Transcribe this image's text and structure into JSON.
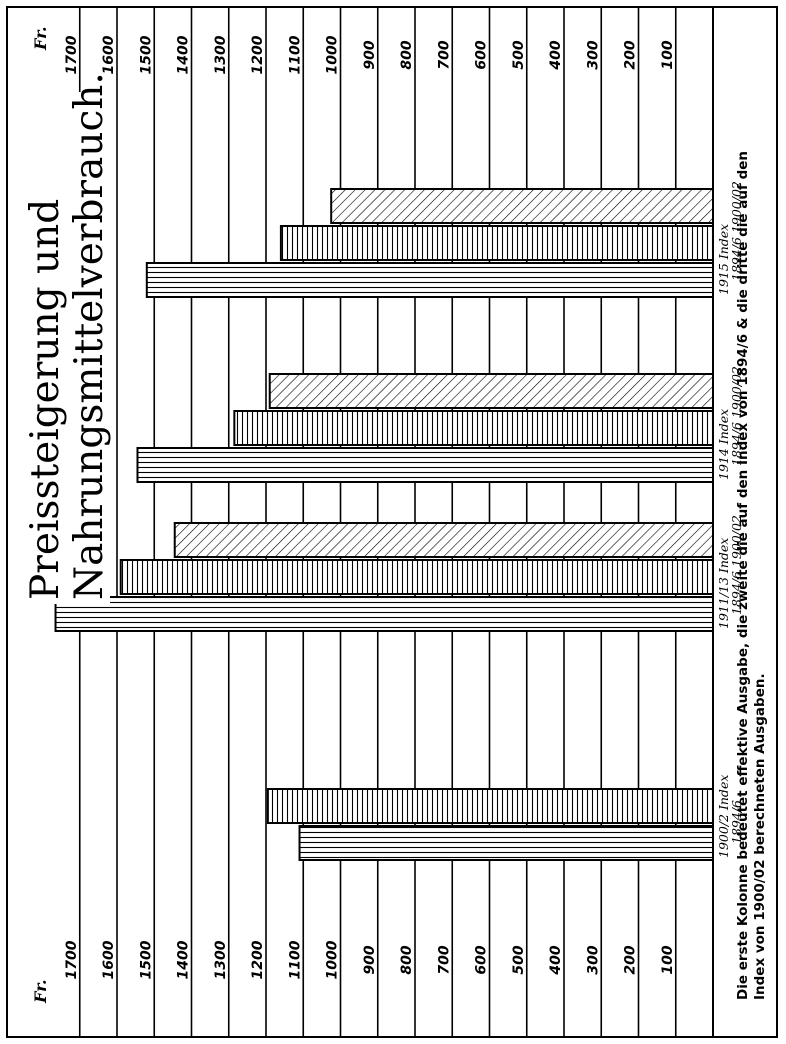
{
  "chart_data": {
    "type": "bar",
    "title_line1": "Preissteigerung und",
    "title_line2": "Nahrungsmittelverbrauch.",
    "unit_label": "Fr.",
    "ylim": [
      0,
      1700
    ],
    "ticks": [
      1700,
      1600,
      1500,
      1400,
      1300,
      1200,
      1100,
      1000,
      900,
      800,
      700,
      600,
      500,
      400,
      300,
      200,
      100
    ],
    "grid": true,
    "groups": [
      {
        "label_line1": "1900/2 Index",
        "label_line2": "1894/6",
        "bars": [
          {
            "kind": "effektiv",
            "value": 1110
          },
          {
            "kind": "index_1894_6",
            "value": 1195
          }
        ]
      },
      {
        "label_line1": "1911/13 Index",
        "label_line2": "1894/6 1900/02",
        "bars": [
          {
            "kind": "effektiv",
            "value": 1765
          },
          {
            "kind": "index_1894_6",
            "value": 1590
          },
          {
            "kind": "index_1900_02",
            "value": 1445
          }
        ]
      },
      {
        "label_line1": "1914 Index",
        "label_line2": "1894/6 1900/02",
        "bars": [
          {
            "kind": "effektiv",
            "value": 1545
          },
          {
            "kind": "index_1894_6",
            "value": 1285
          },
          {
            "kind": "index_1900_02",
            "value": 1190
          }
        ]
      },
      {
        "label_line1": "1915 Index",
        "label_line2": "1894/6 1900/02",
        "bars": [
          {
            "kind": "effektiv",
            "value": 1520
          },
          {
            "kind": "index_1894_6",
            "value": 1160
          },
          {
            "kind": "index_1900_02",
            "value": 1025
          }
        ]
      }
    ],
    "footnote_line1": "Die erste Kolonne bedeutet effektive Ausgabe, die zweite die auf den Index von 1894/6 & die dritte die auf den",
    "footnote_line2": "Index von 1900/02 berechneten Ausgaben."
  }
}
